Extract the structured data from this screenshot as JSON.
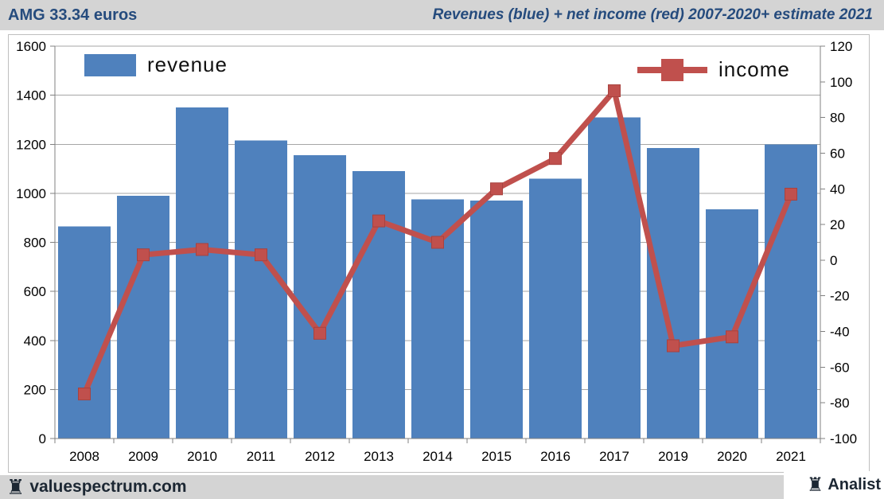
{
  "header": {
    "left_title": "AMG 33.34 euros",
    "right_title": "Revenues (blue) + net income (red) 2007-2020+ estimate 2021"
  },
  "footer": {
    "left_brand": "valuespectrum.com",
    "right_brand": "Analist",
    "rook_glyph": "♜"
  },
  "chart_data": {
    "type": "bar",
    "title": "Revenues (blue) + net income (red) 2007-2020+ estimate 2021",
    "categories": [
      "2008",
      "2009",
      "2010",
      "2011",
      "2012",
      "2013",
      "2014",
      "2015",
      "2016",
      "2017",
      "2019",
      "2020",
      "2021"
    ],
    "series": [
      {
        "name": "revenue",
        "type": "bar",
        "axis": "left",
        "color": "#4f81bd",
        "values": [
          865,
          990,
          1350,
          1215,
          1155,
          1090,
          975,
          970,
          1060,
          1310,
          1185,
          935,
          1200
        ]
      },
      {
        "name": "income",
        "type": "line",
        "axis": "right",
        "color": "#c0504d",
        "values": [
          -75,
          3,
          6,
          3,
          -41,
          22,
          10,
          40,
          57,
          95,
          -48,
          -43,
          37
        ]
      }
    ],
    "left_axis": {
      "min": 0,
      "max": 1600,
      "step": 200,
      "tick_labels": [
        "1600",
        "1400",
        "1200",
        "1000",
        "800",
        "600",
        "400",
        "200",
        "0"
      ]
    },
    "right_axis": {
      "min": -100,
      "max": 120,
      "step": 20,
      "tick_labels": [
        "120",
        "100",
        "80",
        "60",
        "40",
        "20",
        "0",
        "-20",
        "-40",
        "-60",
        "-80",
        "-100"
      ]
    },
    "legend": {
      "revenue_label": "revenue",
      "income_label": "income",
      "position": "top-inside"
    },
    "grid": true,
    "grid_color": "#a6a6a6",
    "axis_color": "#808080",
    "xlabel": "",
    "ylabel": ""
  }
}
